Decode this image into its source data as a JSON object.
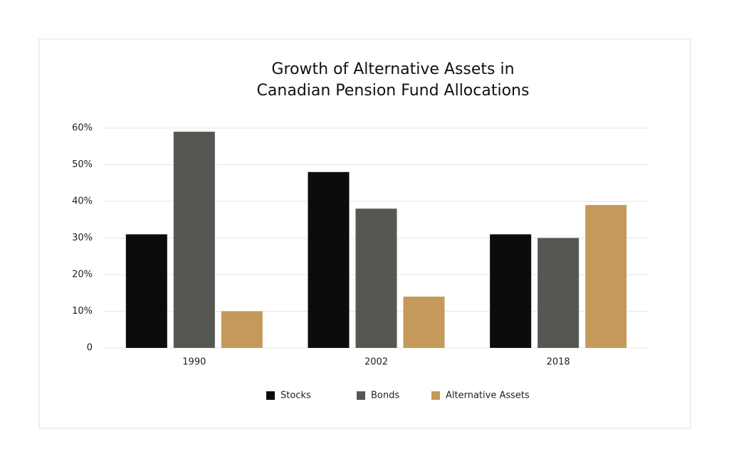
{
  "chart_data": {
    "type": "bar",
    "title": [
      "Growth of Alternative Assets in",
      "Canadian Pension Fund Allocations"
    ],
    "categories": [
      "1990",
      "2002",
      "2018"
    ],
    "series": [
      {
        "name": "Stocks",
        "color": "#0a0d0b",
        "values": [
          31,
          48,
          31
        ]
      },
      {
        "name": "Bonds",
        "color": "#555852",
        "values": [
          59,
          38,
          30
        ]
      },
      {
        "name": "Alternative Assets",
        "color": "#c49a5a",
        "values": [
          10,
          14,
          39
        ]
      }
    ],
    "ylim": [
      0,
      60
    ],
    "yticks": [
      0,
      {
        "value": 10,
        "label": "10%"
      },
      {
        "value": 20,
        "label": "20%"
      },
      {
        "value": 30,
        "label": "30%"
      },
      {
        "value": 40,
        "label": "40%"
      },
      {
        "value": 50,
        "label": "50%"
      },
      {
        "value": 60,
        "label": "60%"
      }
    ],
    "grid": true
  }
}
